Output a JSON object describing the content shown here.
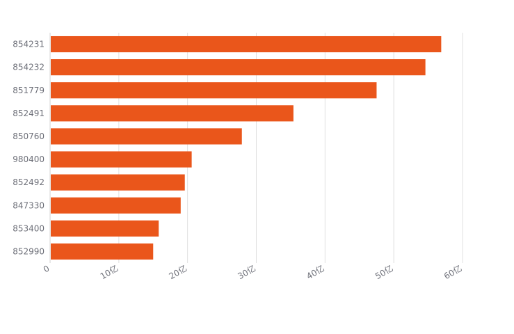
{
  "chart_data": {
    "type": "bar",
    "orientation": "horizontal",
    "title": "",
    "xlabel": "",
    "ylabel": "",
    "categories": [
      "854231",
      "854232",
      "851779",
      "852491",
      "850760",
      "980400",
      "852492",
      "847330",
      "853400",
      "852990"
    ],
    "values": [
      56.9,
      54.6,
      47.5,
      35.4,
      27.9,
      20.6,
      19.6,
      19.0,
      15.8,
      15.0
    ],
    "x_ticks": [
      0,
      10,
      20,
      30,
      40,
      50,
      60
    ],
    "x_tick_labels": [
      "0",
      "10亿",
      "20亿",
      "30亿",
      "40亿",
      "50亿",
      "60亿"
    ],
    "xlim": [
      0,
      60
    ],
    "grid": true,
    "legend": "none",
    "bar_color": "#ea561b"
  }
}
